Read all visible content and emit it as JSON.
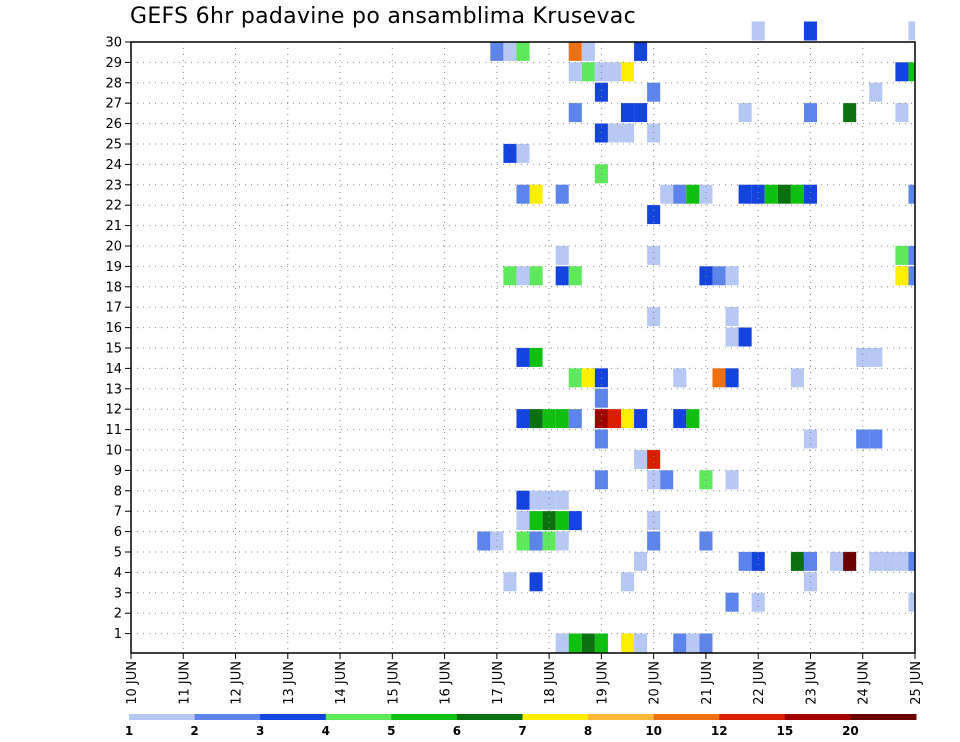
{
  "chart_data": {
    "type": "heatmap",
    "title": "GEFS 6hr padavine po ansamblima Krusevac",
    "xlabel": "",
    "ylabel": "",
    "x_range": [
      0,
      60
    ],
    "x_ticks": [
      {
        "x": 0,
        "label": "10 JUN"
      },
      {
        "x": 4,
        "label": "11 JUN"
      },
      {
        "x": 8,
        "label": "12 JUN"
      },
      {
        "x": 12,
        "label": "13 JUN"
      },
      {
        "x": 16,
        "label": "14 JUN"
      },
      {
        "x": 20,
        "label": "15 JUN"
      },
      {
        "x": 24,
        "label": "16 JUN"
      },
      {
        "x": 28,
        "label": "17 JUN"
      },
      {
        "x": 32,
        "label": "18 JUN"
      },
      {
        "x": 36,
        "label": "19 JUN"
      },
      {
        "x": 40,
        "label": "20 JUN"
      },
      {
        "x": 44,
        "label": "21 JUN"
      },
      {
        "x": 48,
        "label": "22 JUN"
      },
      {
        "x": 52,
        "label": "23 JUN"
      },
      {
        "x": 56,
        "label": "24 JUN"
      },
      {
        "x": 60,
        "label": "25 JUN"
      }
    ],
    "y_range": [
      0,
      30
    ],
    "y_ticks": [
      "1",
      "2",
      "3",
      "4",
      "5",
      "6",
      "7",
      "8",
      "9",
      "10",
      "11",
      "12",
      "13",
      "14",
      "15",
      "16",
      "17",
      "18",
      "19",
      "20",
      "21",
      "22",
      "23",
      "24",
      "25",
      "26",
      "27",
      "28",
      "29",
      "30"
    ],
    "grid": "dotted",
    "colorbar": {
      "labels": [
        "1",
        "2",
        "3",
        "4",
        "5",
        "6",
        "7",
        "8",
        "10",
        "12",
        "15",
        "20"
      ],
      "colors": [
        "#b8c8f4",
        "#5c84ea",
        "#1443de",
        "#5ee85c",
        "#10c010",
        "#0a7010",
        "#ffee00",
        "#ffb83a",
        "#f07010",
        "#d82000",
        "#a00000",
        "#6a0000"
      ]
    },
    "cells": [
      [
        30,
        52,
        2
      ],
      [
        30,
        48,
        0
      ],
      [
        30,
        60,
        0
      ],
      [
        29,
        28,
        1
      ],
      [
        29,
        29,
        0
      ],
      [
        29,
        30,
        3
      ],
      [
        29,
        34,
        8
      ],
      [
        29,
        35,
        0
      ],
      [
        29,
        39,
        2
      ],
      [
        28,
        34,
        0
      ],
      [
        28,
        35,
        3
      ],
      [
        28,
        36,
        0
      ],
      [
        28,
        37,
        0
      ],
      [
        28,
        38,
        6
      ],
      [
        28,
        59,
        2
      ],
      [
        28,
        60,
        4
      ],
      [
        27,
        36,
        2
      ],
      [
        27,
        40,
        1
      ],
      [
        27,
        57,
        0
      ],
      [
        26,
        34,
        1
      ],
      [
        26,
        38,
        2
      ],
      [
        26,
        39,
        2
      ],
      [
        26,
        47,
        0
      ],
      [
        26,
        52,
        1
      ],
      [
        26,
        55,
        5
      ],
      [
        26,
        59,
        0
      ],
      [
        25,
        36,
        2
      ],
      [
        25,
        37,
        0
      ],
      [
        25,
        38,
        0
      ],
      [
        25,
        40,
        0
      ],
      [
        24,
        29,
        2
      ],
      [
        24,
        30,
        0
      ],
      [
        23,
        36,
        3
      ],
      [
        22,
        30,
        1
      ],
      [
        22,
        31,
        6
      ],
      [
        22,
        33,
        1
      ],
      [
        22,
        41,
        0
      ],
      [
        22,
        42,
        1
      ],
      [
        22,
        43,
        4
      ],
      [
        22,
        44,
        0
      ],
      [
        22,
        47,
        2
      ],
      [
        22,
        48,
        2
      ],
      [
        22,
        49,
        4
      ],
      [
        22,
        50,
        5
      ],
      [
        22,
        51,
        4
      ],
      [
        22,
        52,
        2
      ],
      [
        22,
        60,
        1
      ],
      [
        21,
        40,
        2
      ],
      [
        19,
        33,
        0
      ],
      [
        19,
        40,
        0
      ],
      [
        19,
        59,
        3
      ],
      [
        19,
        60,
        1
      ],
      [
        18,
        29,
        3
      ],
      [
        18,
        30,
        0
      ],
      [
        18,
        31,
        3
      ],
      [
        18,
        33,
        2
      ],
      [
        18,
        34,
        3
      ],
      [
        18,
        44,
        2
      ],
      [
        18,
        45,
        1
      ],
      [
        18,
        46,
        0
      ],
      [
        18,
        59,
        6
      ],
      [
        18,
        60,
        1
      ],
      [
        16,
        46,
        0
      ],
      [
        16,
        40,
        0
      ],
      [
        15,
        46,
        0
      ],
      [
        15,
        47,
        2
      ],
      [
        14,
        30,
        2
      ],
      [
        14,
        31,
        4
      ],
      [
        14,
        56,
        0
      ],
      [
        14,
        57,
        0
      ],
      [
        13,
        34,
        3
      ],
      [
        13,
        35,
        6
      ],
      [
        13,
        36,
        2
      ],
      [
        13,
        42,
        0
      ],
      [
        13,
        45,
        8
      ],
      [
        13,
        46,
        2
      ],
      [
        13,
        51,
        0
      ],
      [
        12,
        36,
        1
      ],
      [
        11,
        30,
        2
      ],
      [
        11,
        31,
        5
      ],
      [
        11,
        32,
        4
      ],
      [
        11,
        33,
        4
      ],
      [
        11,
        34,
        1
      ],
      [
        11,
        36,
        10
      ],
      [
        11,
        37,
        9
      ],
      [
        11,
        38,
        6
      ],
      [
        11,
        39,
        2
      ],
      [
        11,
        42,
        2
      ],
      [
        11,
        43,
        4
      ],
      [
        10,
        36,
        1
      ],
      [
        10,
        52,
        0
      ],
      [
        10,
        56,
        1
      ],
      [
        10,
        57,
        1
      ],
      [
        9,
        39,
        0
      ],
      [
        9,
        40,
        9
      ],
      [
        8,
        36,
        1
      ],
      [
        8,
        40,
        0
      ],
      [
        8,
        41,
        1
      ],
      [
        8,
        44,
        3
      ],
      [
        8,
        46,
        0
      ],
      [
        7,
        30,
        2
      ],
      [
        7,
        31,
        0
      ],
      [
        7,
        32,
        0
      ],
      [
        7,
        33,
        0
      ],
      [
        6,
        30,
        0
      ],
      [
        6,
        31,
        4
      ],
      [
        6,
        32,
        5
      ],
      [
        6,
        33,
        4
      ],
      [
        6,
        34,
        2
      ],
      [
        6,
        40,
        0
      ],
      [
        5,
        27,
        1
      ],
      [
        5,
        28,
        0
      ],
      [
        5,
        30,
        3
      ],
      [
        5,
        31,
        1
      ],
      [
        5,
        32,
        3
      ],
      [
        5,
        33,
        0
      ],
      [
        5,
        40,
        1
      ],
      [
        5,
        44,
        1
      ],
      [
        4,
        39,
        0
      ],
      [
        4,
        47,
        1
      ],
      [
        4,
        48,
        2
      ],
      [
        4,
        51,
        5
      ],
      [
        4,
        52,
        1
      ],
      [
        4,
        54,
        0
      ],
      [
        4,
        55,
        11
      ],
      [
        4,
        57,
        0
      ],
      [
        4,
        58,
        0
      ],
      [
        4,
        59,
        0
      ],
      [
        4,
        60,
        1
      ],
      [
        3,
        29,
        0
      ],
      [
        3,
        31,
        2
      ],
      [
        3,
        38,
        0
      ],
      [
        3,
        52,
        0
      ],
      [
        2,
        46,
        1
      ],
      [
        2,
        48,
        0
      ],
      [
        2,
        60,
        0
      ],
      [
        0,
        33,
        0
      ],
      [
        0,
        34,
        4
      ],
      [
        0,
        35,
        5
      ],
      [
        0,
        36,
        4
      ],
      [
        0,
        38,
        6
      ],
      [
        0,
        39,
        0
      ],
      [
        0,
        42,
        1
      ],
      [
        0,
        43,
        0
      ],
      [
        0,
        44,
        1
      ]
    ]
  }
}
